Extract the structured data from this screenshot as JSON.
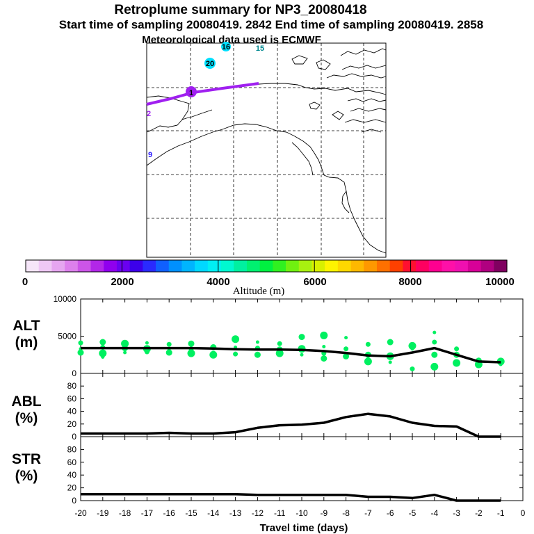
{
  "titles": {
    "line1": "Retroplume summary for NP3_20080418",
    "line2": "Start time of sampling 20080419.  2842     End time of sampling 20080419.  2858",
    "line3": "Meteorological data used is ECMWF"
  },
  "map": {
    "point_labels": [
      {
        "text": "16",
        "color": "#00e0ff"
      },
      {
        "text": "15",
        "color": "#00e0ff"
      },
      {
        "text": "20",
        "color": "#00e0ff"
      },
      {
        "text": "1",
        "color": "#a020f0"
      },
      {
        "text": "2",
        "color": "#a020f0"
      },
      {
        "text": "9",
        "color": "#3020ff"
      }
    ],
    "track_color": "#a020f0"
  },
  "colorbar": {
    "label": "Altitude (m)",
    "ticks": [
      "0",
      "2000",
      "4000",
      "6000",
      "8000",
      "10000"
    ],
    "colors": [
      "#f6e6f9",
      "#efc8f5",
      "#e6a6f0",
      "#dd80ec",
      "#cc55e8",
      "#b227e8",
      "#9000ee",
      "#6a00f0",
      "#3c00ea",
      "#2a2aff",
      "#1060ff",
      "#0090ff",
      "#00b4ff",
      "#00d8ff",
      "#00f0f4",
      "#00f8d0",
      "#00f0a0",
      "#00f070",
      "#00f040",
      "#30f020",
      "#70f010",
      "#a8f010",
      "#d8f000",
      "#fff400",
      "#ffd800",
      "#ffb800",
      "#ff9800",
      "#ff7000",
      "#ff4000",
      "#ff1030",
      "#ff0060",
      "#ff0090",
      "#ff10a8",
      "#f010b0",
      "#d80098",
      "#b00080",
      "#800060"
    ]
  },
  "chart_data": [
    {
      "type": "line",
      "panel_label": "ALT",
      "unit_label": "(m)",
      "x": [
        -20,
        -19,
        -18,
        -17,
        -16,
        -15,
        -14,
        -13,
        -12,
        -11,
        -10,
        -9,
        -8,
        -7,
        -6,
        -5,
        -4,
        -3,
        -2,
        -1
      ],
      "ylim": [
        0,
        10000
      ],
      "yticks": [
        "0",
        "5000",
        "10000"
      ],
      "series": [
        {
          "name": "mean altitude",
          "values": [
            3400,
            3400,
            3400,
            3400,
            3400,
            3400,
            3350,
            3250,
            3200,
            3200,
            3150,
            3000,
            2750,
            2400,
            2300,
            2800,
            3400,
            2500,
            1600,
            1500
          ]
        }
      ],
      "scatter_color": "#00f060",
      "scatter": [
        {
          "x": -20,
          "y": [
            3300,
            4100,
            2800
          ]
        },
        {
          "x": -19,
          "y": [
            3500,
            4200,
            2700,
            2200
          ]
        },
        {
          "x": -18,
          "y": [
            3400,
            4000,
            2800
          ]
        },
        {
          "x": -17,
          "y": [
            3300,
            4100,
            2900
          ]
        },
        {
          "x": -16,
          "y": [
            3300,
            3900,
            2800
          ]
        },
        {
          "x": -15,
          "y": [
            3300,
            4000,
            2700
          ]
        },
        {
          "x": -14,
          "y": [
            3500,
            2500
          ]
        },
        {
          "x": -13,
          "y": [
            4600,
            3500,
            2600
          ]
        },
        {
          "x": -12,
          "y": [
            4200,
            3400,
            2500
          ]
        },
        {
          "x": -11,
          "y": [
            4000,
            3200,
            2700
          ]
        },
        {
          "x": -10,
          "y": [
            4900,
            3300,
            2500
          ]
        },
        {
          "x": -9,
          "y": [
            5100,
            3600,
            2700,
            2000
          ]
        },
        {
          "x": -8,
          "y": [
            4800,
            3300,
            2300
          ]
        },
        {
          "x": -7,
          "y": [
            3900,
            2500,
            1600
          ]
        },
        {
          "x": -6,
          "y": [
            4200,
            2300,
            1500
          ]
        },
        {
          "x": -5,
          "y": [
            3700,
            3300,
            600
          ]
        },
        {
          "x": -4,
          "y": [
            5500,
            4200,
            2500,
            900
          ]
        },
        {
          "x": -3,
          "y": [
            3300,
            2500,
            1400
          ]
        },
        {
          "x": -2,
          "y": [
            1700,
            1200
          ]
        },
        {
          "x": -1,
          "y": [
            1600,
            1200
          ]
        }
      ]
    },
    {
      "type": "line",
      "panel_label": "ABL",
      "unit_label": "(%)",
      "x": [
        -20,
        -19,
        -18,
        -17,
        -16,
        -15,
        -14,
        -13,
        -12,
        -11,
        -10,
        -9,
        -8,
        -7,
        -6,
        -5,
        -4,
        -3,
        -2,
        -1
      ],
      "ylim": [
        0,
        100
      ],
      "yticks": [
        "0",
        "20",
        "40",
        "60",
        "80"
      ],
      "series": [
        {
          "name": "ABL fraction",
          "values": [
            5,
            5,
            5,
            5,
            6,
            5,
            5,
            7,
            14,
            18,
            19,
            22,
            31,
            36,
            32,
            22,
            17,
            16,
            0,
            0
          ]
        }
      ]
    },
    {
      "type": "line",
      "panel_label": "STR",
      "unit_label": "(%)",
      "x": [
        -20,
        -19,
        -18,
        -17,
        -16,
        -15,
        -14,
        -13,
        -12,
        -11,
        -10,
        -9,
        -8,
        -7,
        -6,
        -5,
        -4,
        -3,
        -2,
        -1
      ],
      "ylim": [
        0,
        100
      ],
      "yticks": [
        "0",
        "20",
        "40",
        "60",
        "80"
      ],
      "xticks": [
        "-20",
        "-19",
        "-18",
        "-17",
        "-16",
        "-15",
        "-14",
        "-13",
        "-12",
        "-11",
        "-10",
        "-9",
        "-8",
        "-7",
        "-6",
        "-5",
        "-4",
        "-3",
        "-2",
        "-1",
        "0"
      ],
      "xlabel": "Travel time (days)",
      "series": [
        {
          "name": "stratospheric fraction",
          "values": [
            10,
            10,
            10,
            10,
            10,
            10,
            10,
            10,
            9,
            9,
            9,
            9,
            9,
            6,
            6,
            4,
            9,
            0,
            0,
            0
          ]
        }
      ]
    }
  ]
}
